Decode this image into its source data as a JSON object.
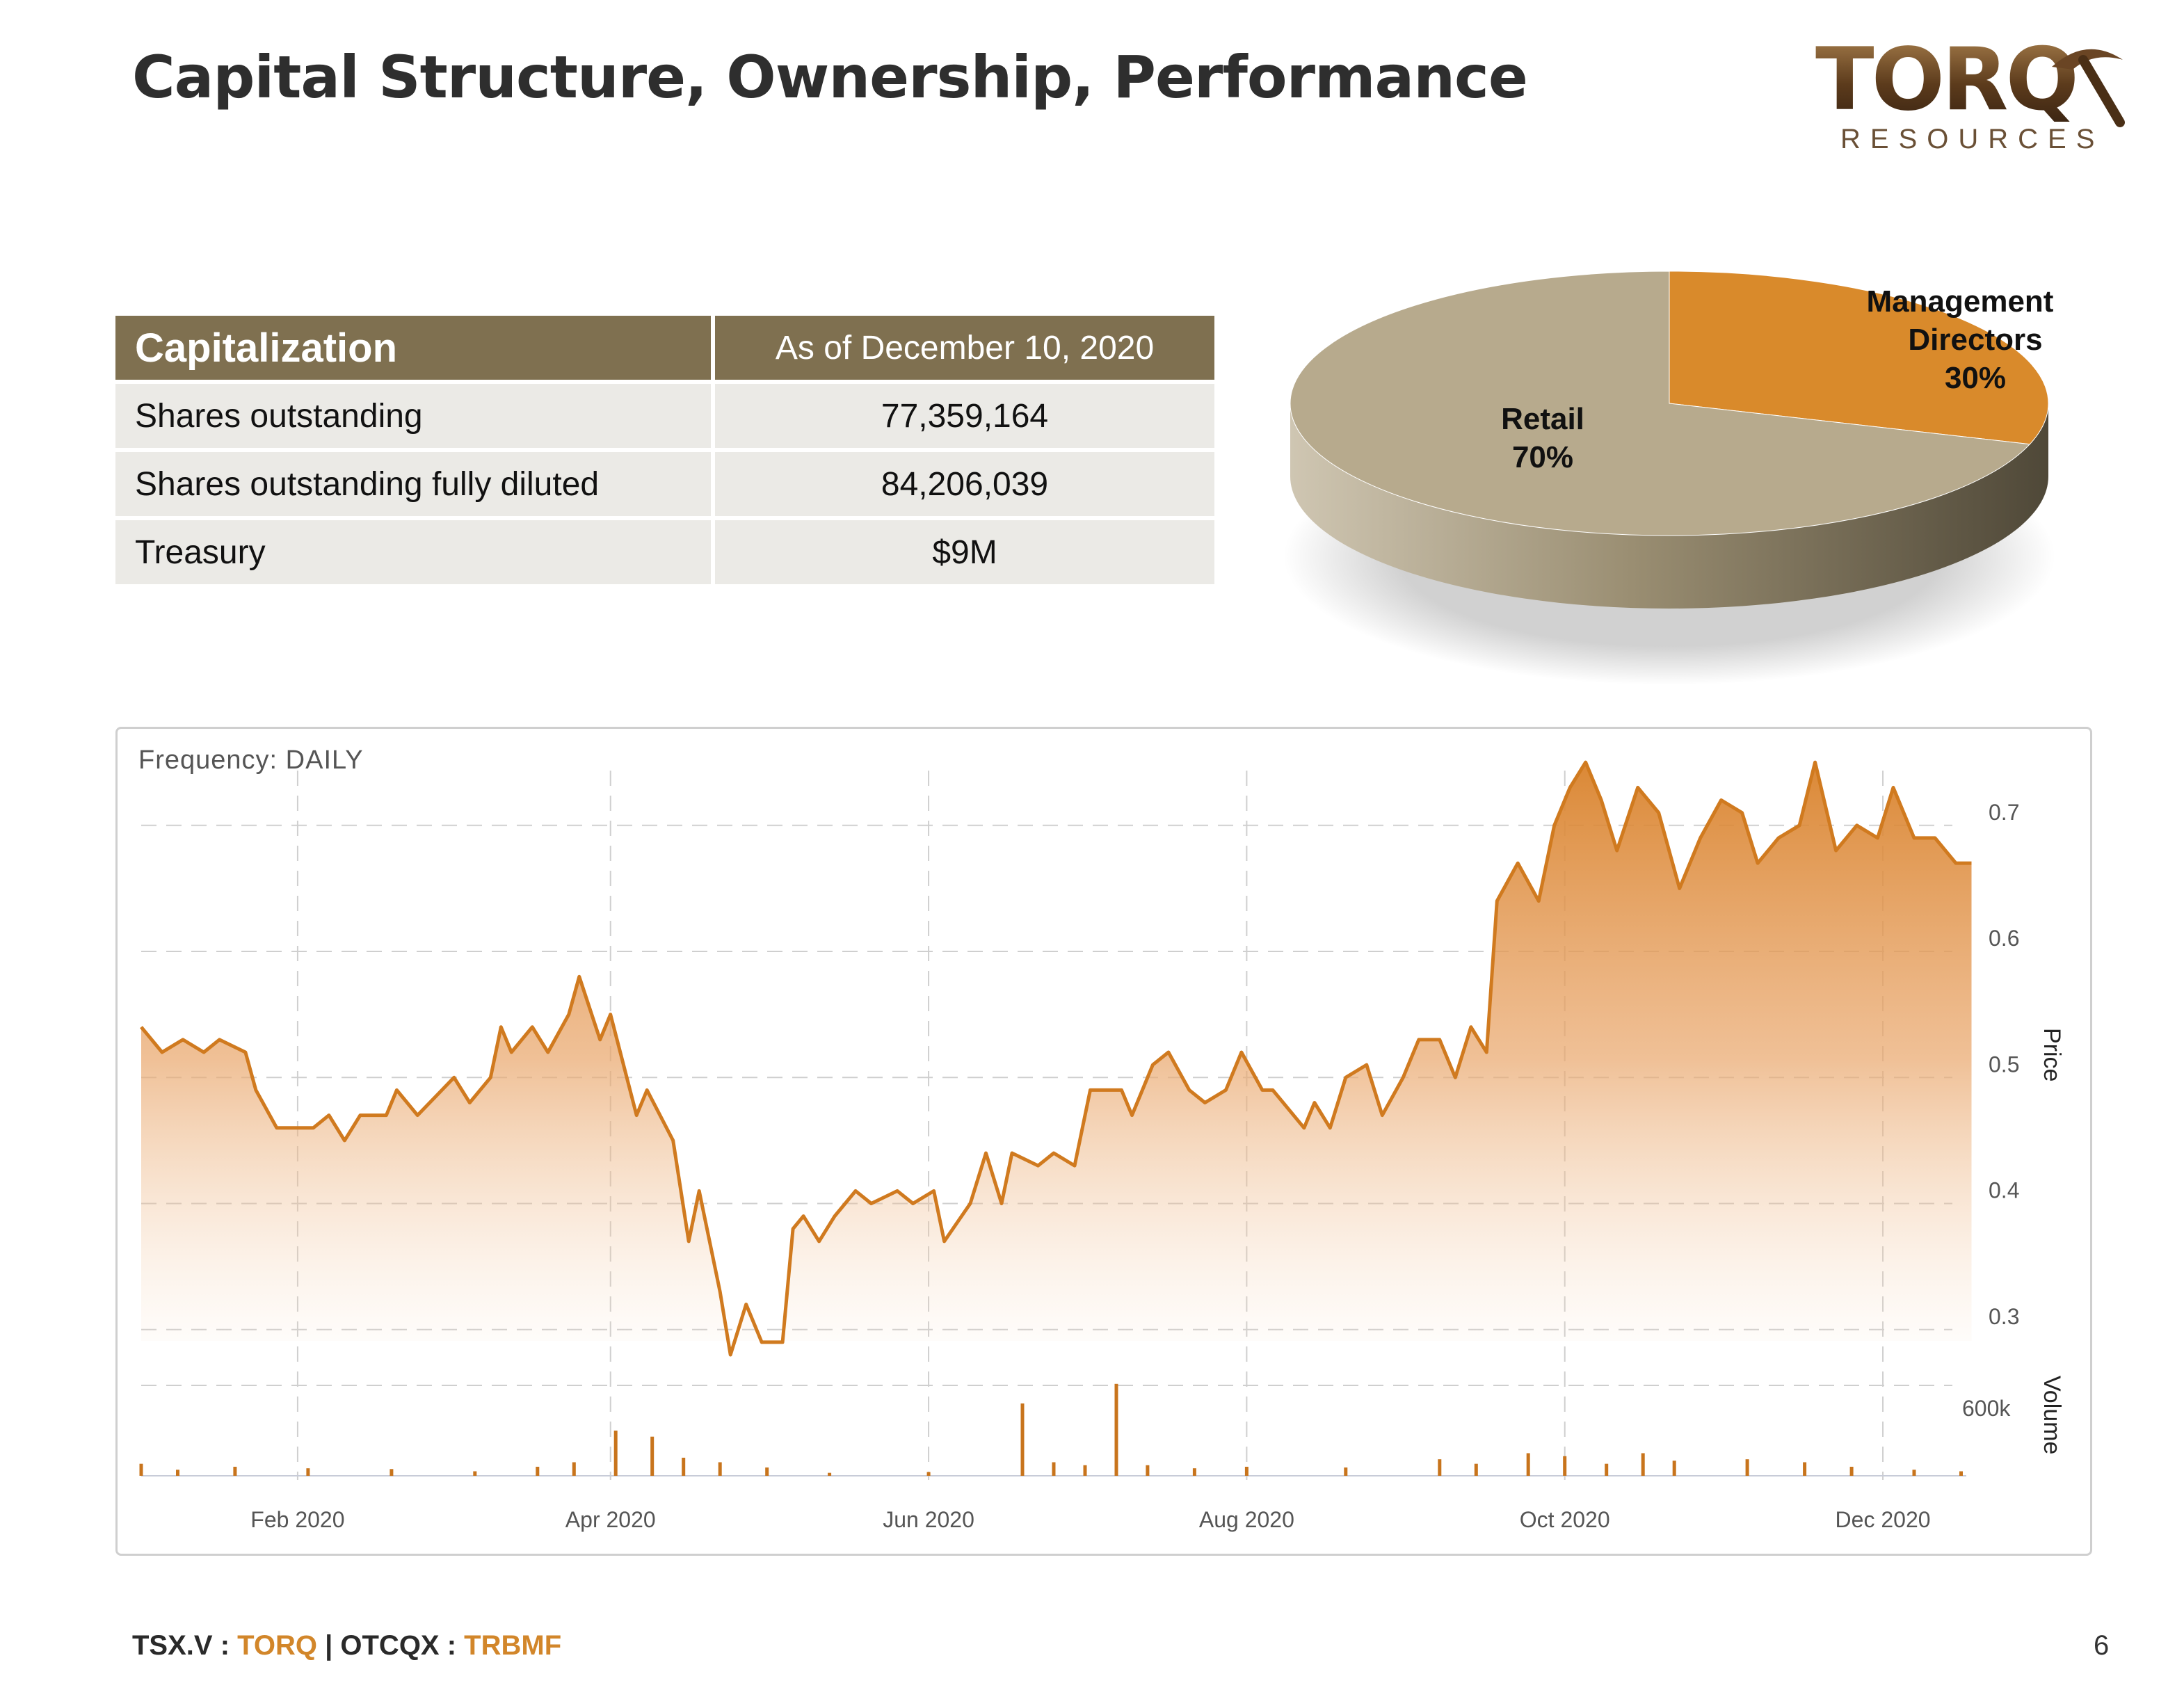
{
  "header": {
    "title": "Capital Structure, Ownership, Performance"
  },
  "logo": {
    "word": "TORQ",
    "sub": "RESOURCES",
    "icon": "pickaxe-icon"
  },
  "capitalization": {
    "header_label": "Capitalization",
    "header_value": "As of December 10, 2020",
    "rows": [
      {
        "label": "Shares outstanding",
        "value": "77,359,164"
      },
      {
        "label": "Shares outstanding fully diluted",
        "value": "84,206,039"
      },
      {
        "label": "Treasury",
        "value": "$9M"
      }
    ]
  },
  "ownership": {
    "slices": [
      {
        "name": "Management & Directors",
        "label_lines": [
          "Management &",
          "Directors",
          "30%"
        ],
        "value": 30,
        "color": "#d98a2b"
      },
      {
        "name": "Retail",
        "label_lines": [
          "Retail",
          "70%"
        ],
        "value": 70,
        "color": "#b7aa8d"
      }
    ]
  },
  "colors": {
    "accent": "#d2862a",
    "table_header": "#7f7050",
    "table_row": "#ebeae6"
  },
  "stock_chart": {
    "frequency_label": "Frequency: DAILY",
    "price_axis_label": "Price",
    "volume_axis_label": "Volume",
    "price_ticks": [
      "0.7",
      "0.6",
      "0.5",
      "0.4",
      "0.3"
    ],
    "volume_tick": "600k",
    "x_ticks": [
      "Feb 2020",
      "Apr 2020",
      "Jun 2020",
      "Aug 2020",
      "Oct 2020",
      "Dec 2020"
    ]
  },
  "chart_data": {
    "type": "area",
    "title": "",
    "frequency": "DAILY",
    "x_range": [
      "2020-01-02",
      "2020-12-17"
    ],
    "price_ylim": [
      0.28,
      0.76
    ],
    "volume_max": 600000,
    "series": [
      {
        "name": "Price",
        "points": [
          [
            "2020-01-02",
            0.54
          ],
          [
            "2020-01-06",
            0.52
          ],
          [
            "2020-01-10",
            0.53
          ],
          [
            "2020-01-14",
            0.52
          ],
          [
            "2020-01-17",
            0.53
          ],
          [
            "2020-01-22",
            0.52
          ],
          [
            "2020-01-24",
            0.49
          ],
          [
            "2020-01-28",
            0.46
          ],
          [
            "2020-02-04",
            0.46
          ],
          [
            "2020-02-07",
            0.47
          ],
          [
            "2020-02-10",
            0.45
          ],
          [
            "2020-02-13",
            0.47
          ],
          [
            "2020-02-18",
            0.47
          ],
          [
            "2020-02-20",
            0.49
          ],
          [
            "2020-02-24",
            0.47
          ],
          [
            "2020-03-02",
            0.5
          ],
          [
            "2020-03-05",
            0.48
          ],
          [
            "2020-03-09",
            0.5
          ],
          [
            "2020-03-11",
            0.54
          ],
          [
            "2020-03-13",
            0.52
          ],
          [
            "2020-03-17",
            0.54
          ],
          [
            "2020-03-20",
            0.52
          ],
          [
            "2020-03-24",
            0.55
          ],
          [
            "2020-03-26",
            0.58
          ],
          [
            "2020-03-30",
            0.53
          ],
          [
            "2020-04-01",
            0.55
          ],
          [
            "2020-04-06",
            0.47
          ],
          [
            "2020-04-08",
            0.49
          ],
          [
            "2020-04-13",
            0.45
          ],
          [
            "2020-04-16",
            0.37
          ],
          [
            "2020-04-18",
            0.41
          ],
          [
            "2020-04-22",
            0.33
          ],
          [
            "2020-04-24",
            0.28
          ],
          [
            "2020-04-27",
            0.32
          ],
          [
            "2020-04-30",
            0.29
          ],
          [
            "2020-05-04",
            0.29
          ],
          [
            "2020-05-06",
            0.38
          ],
          [
            "2020-05-08",
            0.39
          ],
          [
            "2020-05-11",
            0.37
          ],
          [
            "2020-05-14",
            0.39
          ],
          [
            "2020-05-18",
            0.41
          ],
          [
            "2020-05-21",
            0.4
          ],
          [
            "2020-05-26",
            0.41
          ],
          [
            "2020-05-29",
            0.4
          ],
          [
            "2020-06-02",
            0.41
          ],
          [
            "2020-06-04",
            0.37
          ],
          [
            "2020-06-09",
            0.4
          ],
          [
            "2020-06-12",
            0.44
          ],
          [
            "2020-06-15",
            0.4
          ],
          [
            "2020-06-17",
            0.44
          ],
          [
            "2020-06-22",
            0.43
          ],
          [
            "2020-06-25",
            0.44
          ],
          [
            "2020-06-29",
            0.43
          ],
          [
            "2020-07-02",
            0.49
          ],
          [
            "2020-07-08",
            0.49
          ],
          [
            "2020-07-10",
            0.47
          ],
          [
            "2020-07-14",
            0.51
          ],
          [
            "2020-07-17",
            0.52
          ],
          [
            "2020-07-21",
            0.49
          ],
          [
            "2020-07-24",
            0.48
          ],
          [
            "2020-07-28",
            0.49
          ],
          [
            "2020-07-31",
            0.52
          ],
          [
            "2020-08-04",
            0.49
          ],
          [
            "2020-08-06",
            0.49
          ],
          [
            "2020-08-12",
            0.46
          ],
          [
            "2020-08-14",
            0.48
          ],
          [
            "2020-08-17",
            0.46
          ],
          [
            "2020-08-20",
            0.5
          ],
          [
            "2020-08-24",
            0.51
          ],
          [
            "2020-08-27",
            0.47
          ],
          [
            "2020-08-31",
            0.5
          ],
          [
            "2020-09-03",
            0.53
          ],
          [
            "2020-09-07",
            0.53
          ],
          [
            "2020-09-10",
            0.5
          ],
          [
            "2020-09-13",
            0.54
          ],
          [
            "2020-09-16",
            0.52
          ],
          [
            "2020-09-18",
            0.64
          ],
          [
            "2020-09-22",
            0.67
          ],
          [
            "2020-09-26",
            0.64
          ],
          [
            "2020-09-29",
            0.7
          ],
          [
            "2020-10-02",
            0.73
          ],
          [
            "2020-10-05",
            0.75
          ],
          [
            "2020-10-08",
            0.72
          ],
          [
            "2020-10-11",
            0.68
          ],
          [
            "2020-10-15",
            0.73
          ],
          [
            "2020-10-19",
            0.71
          ],
          [
            "2020-10-23",
            0.65
          ],
          [
            "2020-10-27",
            0.69
          ],
          [
            "2020-10-31",
            0.72
          ],
          [
            "2020-11-04",
            0.71
          ],
          [
            "2020-11-07",
            0.67
          ],
          [
            "2020-11-11",
            0.69
          ],
          [
            "2020-11-15",
            0.7
          ],
          [
            "2020-11-18",
            0.75
          ],
          [
            "2020-11-22",
            0.68
          ],
          [
            "2020-11-26",
            0.7
          ],
          [
            "2020-11-30",
            0.69
          ],
          [
            "2020-12-03",
            0.73
          ],
          [
            "2020-12-07",
            0.69
          ],
          [
            "2020-12-11",
            0.69
          ],
          [
            "2020-12-15",
            0.67
          ],
          [
            "2020-12-18",
            0.67
          ]
        ]
      },
      {
        "name": "Volume",
        "points": [
          [
            "2020-01-02",
            80000
          ],
          [
            "2020-01-09",
            40000
          ],
          [
            "2020-01-20",
            60000
          ],
          [
            "2020-02-03",
            50000
          ],
          [
            "2020-02-19",
            45000
          ],
          [
            "2020-03-06",
            30000
          ],
          [
            "2020-03-18",
            60000
          ],
          [
            "2020-03-25",
            90000
          ],
          [
            "2020-04-02",
            300000
          ],
          [
            "2020-04-09",
            260000
          ],
          [
            "2020-04-15",
            120000
          ],
          [
            "2020-04-22",
            90000
          ],
          [
            "2020-05-01",
            55000
          ],
          [
            "2020-05-13",
            20000
          ],
          [
            "2020-06-01",
            25000
          ],
          [
            "2020-06-19",
            480000
          ],
          [
            "2020-06-25",
            90000
          ],
          [
            "2020-07-01",
            70000
          ],
          [
            "2020-07-07",
            610000
          ],
          [
            "2020-07-13",
            70000
          ],
          [
            "2020-07-22",
            50000
          ],
          [
            "2020-08-01",
            60000
          ],
          [
            "2020-08-20",
            55000
          ],
          [
            "2020-09-07",
            110000
          ],
          [
            "2020-09-14",
            80000
          ],
          [
            "2020-09-24",
            150000
          ],
          [
            "2020-10-01",
            130000
          ],
          [
            "2020-10-09",
            80000
          ],
          [
            "2020-10-16",
            150000
          ],
          [
            "2020-10-22",
            100000
          ],
          [
            "2020-11-05",
            110000
          ],
          [
            "2020-11-16",
            90000
          ],
          [
            "2020-11-25",
            60000
          ],
          [
            "2020-12-07",
            40000
          ],
          [
            "2020-12-16",
            30000
          ]
        ]
      }
    ]
  },
  "footer": {
    "exchange1": "TSX.V : ",
    "ticker1": "TORQ",
    "sep": " | OTCQX : ",
    "ticker2": "TRBMF",
    "page_number": "6"
  }
}
